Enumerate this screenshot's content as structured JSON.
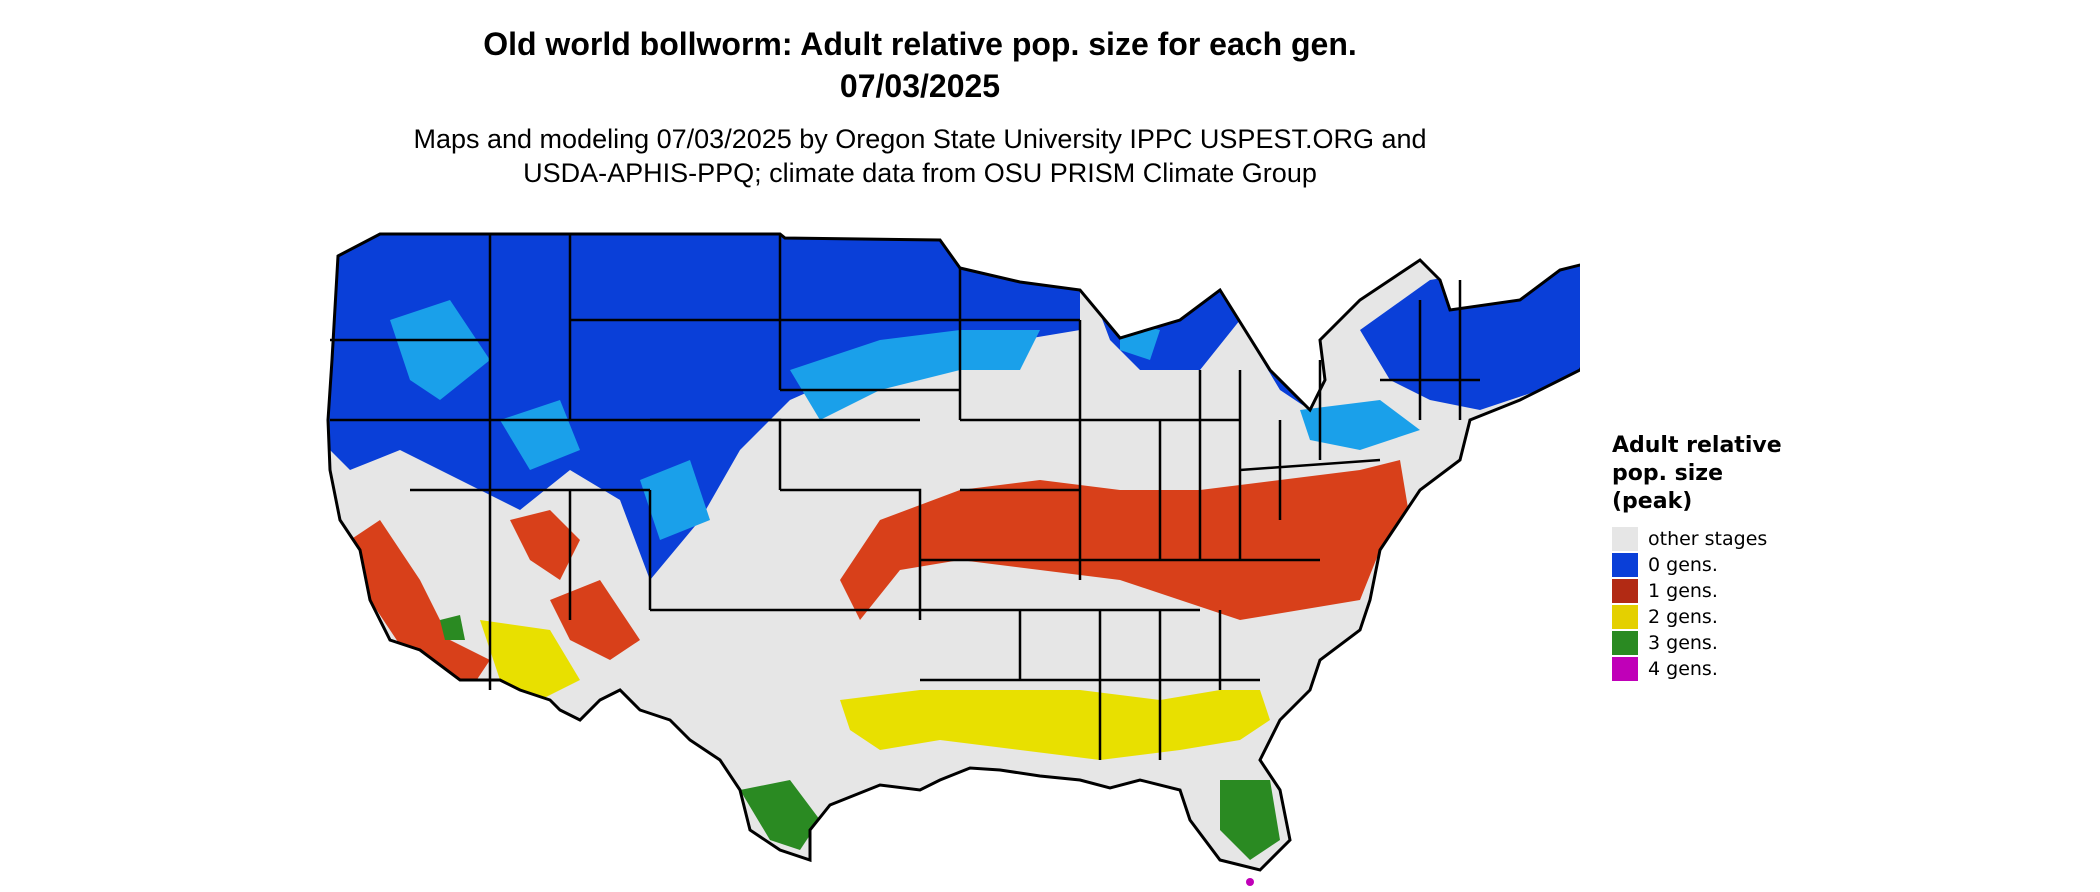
{
  "title": {
    "line1": "Old world bollworm: Adult relative pop. size for each gen.",
    "line2": "07/03/2025"
  },
  "subtitle": {
    "line1": "Maps and modeling 07/03/2025 by Oregon State University IPPC USPEST.ORG and",
    "line2": "USDA-APHIS-PPQ; climate data from OSU PRISM Climate Group"
  },
  "legend": {
    "title_lines": [
      "Adult relative",
      "pop. size",
      "(peak)"
    ],
    "items": [
      {
        "label": "other stages",
        "color": "#e6e6e6"
      },
      {
        "label": "0 gens.",
        "color": "#0a3fd8"
      },
      {
        "label": "1 gens.",
        "color": "#b22a14"
      },
      {
        "label": "2 gens.",
        "color": "#e4d000"
      },
      {
        "label": "3 gens.",
        "color": "#2a8a22"
      },
      {
        "label": "4 gens.",
        "color": "#c000b8"
      }
    ]
  },
  "map": {
    "region": "Contiguous United States",
    "palette": {
      "land": "#e6e6e6",
      "zero_gens": "#0a3fd8",
      "zero_gens_light": "#1aa0ea",
      "one_gen": "#d8401a",
      "two_gens": "#e8e000",
      "three_gens": "#2a8a22",
      "four_gens": "#c000b8",
      "borders": "#000000"
    }
  }
}
